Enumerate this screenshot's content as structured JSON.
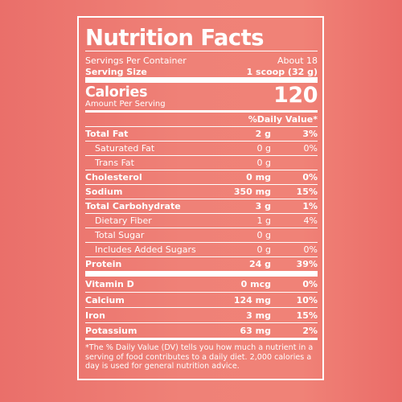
{
  "label": {
    "title": "Nutrition Facts",
    "servings_per_container_label": "Servings Per Container",
    "servings_per_container_value": "About 18",
    "serving_size_label": "Serving Size",
    "serving_size_value": "1 scoop (32 g)",
    "calories_label": "Calories",
    "calories_sub": "Amount Per Serving",
    "calories_value": "120",
    "daily_value_header": "%Daily Value*",
    "nutrients": [
      {
        "name": "Total Fat",
        "amount": "2 g",
        "dv": "3%"
      },
      {
        "name": "Saturated Fat",
        "amount": "0 g",
        "dv": "0%"
      },
      {
        "name": "Trans Fat",
        "amount": "0 g",
        "dv": ""
      },
      {
        "name": "Cholesterol",
        "amount": "0 mg",
        "dv": "0%"
      },
      {
        "name": "Sodium",
        "amount": "350 mg",
        "dv": "15%"
      },
      {
        "name": "Total Carbohydrate",
        "amount": "3 g",
        "dv": "1%"
      },
      {
        "name": "Dietary Fiber",
        "amount": "1 g",
        "dv": "4%"
      },
      {
        "name": "Total Sugar",
        "amount": "0 g",
        "dv": ""
      },
      {
        "name": "Includes Added Sugars",
        "amount": "0 g",
        "dv": "0%"
      },
      {
        "name": "Protein",
        "amount": "24 g",
        "dv": "39%"
      }
    ],
    "vitamins": [
      {
        "name": "Vitamin D",
        "amount": "0 mcg",
        "dv": "0%"
      },
      {
        "name": "Calcium",
        "amount": "124 mg",
        "dv": "10%"
      },
      {
        "name": "Iron",
        "amount": "3 mg",
        "dv": "15%"
      },
      {
        "name": "Potassium",
        "amount": "63 mg",
        "dv": "2%"
      }
    ],
    "footnote": "*The % Daily Value (DV) tells you how much a nutrient in a serving of food contributes to a daily diet. 2,000 calories a day is used for general nutrition advice."
  }
}
